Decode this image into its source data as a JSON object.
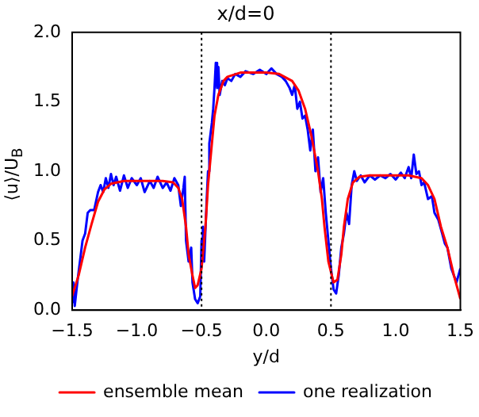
{
  "chart_data": {
    "type": "line",
    "title": "x/d=0",
    "xlabel": "y/d",
    "ylabel": "⟨u⟩/U$_{B}$",
    "xlim": [
      -1.5,
      1.5
    ],
    "xticks": [
      {
        "value": -1.5,
        "label": "−1.5"
      },
      {
        "value": -1,
        "label": "−1.0"
      },
      {
        "value": -0.5,
        "label": "−0.5"
      },
      {
        "value": 0,
        "label": "0.0"
      },
      {
        "value": 0.5,
        "label": "0.5"
      },
      {
        "value": 1,
        "label": "1.0"
      },
      {
        "value": 1.5,
        "label": "1.5"
      }
    ],
    "ylim": [
      0,
      2
    ],
    "yticks": [
      {
        "value": 0,
        "label": "0.0"
      },
      {
        "value": 0.5,
        "label": "0.5"
      },
      {
        "value": 1,
        "label": "1.0"
      },
      {
        "value": 1.5,
        "label": "1.5"
      },
      {
        "value": 2,
        "label": "2.0"
      }
    ],
    "grid": false,
    "legend": "bottom",
    "marker": "none",
    "line_style": "solid",
    "ref_lines": [
      {
        "axis": "x",
        "value": -0.5,
        "color": "#000000",
        "line_style": "dotted"
      },
      {
        "axis": "x",
        "value": 0.5,
        "color": "#000000",
        "line_style": "dotted"
      }
    ],
    "series": [
      {
        "name": "ensemble mean",
        "color": "#ff0000",
        "x": [
          -1.5,
          -1.45,
          -1.4,
          -1.35,
          -1.3,
          -1.25,
          -1.2,
          -1.1,
          -1,
          -0.9,
          -0.8,
          -0.72,
          -0.68,
          -0.65,
          -0.62,
          -0.6,
          -0.57,
          -0.55,
          -0.53,
          -0.5,
          -0.47,
          -0.45,
          -0.42,
          -0.4,
          -0.37,
          -0.33,
          -0.3,
          -0.2,
          0,
          0.1,
          0.2,
          0.25,
          0.3,
          0.35,
          0.4,
          0.43,
          0.45,
          0.48,
          0.52,
          0.55,
          0.58,
          0.6,
          0.63,
          0.67,
          0.72,
          0.8,
          1,
          1.1,
          1.2,
          1.25,
          1.3,
          1.35,
          1.4,
          1.45,
          1.5
        ],
        "values": [
          0.1,
          0.25,
          0.45,
          0.62,
          0.78,
          0.87,
          0.91,
          0.93,
          0.93,
          0.93,
          0.93,
          0.92,
          0.88,
          0.8,
          0.6,
          0.4,
          0.25,
          0.16,
          0.18,
          0.3,
          0.6,
          0.9,
          1.2,
          1.4,
          1.55,
          1.65,
          1.68,
          1.71,
          1.71,
          1.7,
          1.65,
          1.58,
          1.45,
          1.25,
          1,
          0.8,
          0.6,
          0.35,
          0.2,
          0.22,
          0.4,
          0.6,
          0.8,
          0.92,
          0.96,
          0.97,
          0.97,
          0.97,
          0.95,
          0.9,
          0.8,
          0.6,
          0.45,
          0.25,
          0.08
        ]
      },
      {
        "name": "one realization",
        "color": "#0000ff",
        "x": [
          -1.5,
          -1.49,
          -1.48,
          -1.46,
          -1.44,
          -1.42,
          -1.4,
          -1.38,
          -1.36,
          -1.33,
          -1.3,
          -1.28,
          -1.26,
          -1.24,
          -1.22,
          -1.2,
          -1.18,
          -1.16,
          -1.13,
          -1.1,
          -1.07,
          -1.04,
          -1,
          -0.97,
          -0.94,
          -0.9,
          -0.87,
          -0.84,
          -0.8,
          -0.77,
          -0.74,
          -0.71,
          -0.68,
          -0.66,
          -0.64,
          -0.63,
          -0.62,
          -0.6,
          -0.58,
          -0.57,
          -0.55,
          -0.53,
          -0.51,
          -0.5,
          -0.49,
          -0.48,
          -0.46,
          -0.45,
          -0.44,
          -0.42,
          -0.41,
          -0.4,
          -0.39,
          -0.38,
          -0.37,
          -0.36,
          -0.34,
          -0.32,
          -0.3,
          -0.27,
          -0.24,
          -0.2,
          -0.16,
          -0.1,
          -0.05,
          0,
          0.04,
          0.08,
          0.12,
          0.15,
          0.18,
          0.2,
          0.22,
          0.24,
          0.26,
          0.28,
          0.3,
          0.32,
          0.34,
          0.36,
          0.38,
          0.4,
          0.42,
          0.44,
          0.46,
          0.48,
          0.5,
          0.52,
          0.54,
          0.56,
          0.58,
          0.6,
          0.62,
          0.64,
          0.66,
          0.68,
          0.7,
          0.73,
          0.76,
          0.8,
          0.84,
          0.88,
          0.92,
          0.96,
          1,
          1.04,
          1.07,
          1.1,
          1.12,
          1.14,
          1.16,
          1.18,
          1.2,
          1.22,
          1.25,
          1.28,
          1.3,
          1.33,
          1.36,
          1.38,
          1.4,
          1.43,
          1.45,
          1.47,
          1.5
        ],
        "values": [
          0.05,
          0.2,
          0.03,
          0.2,
          0.35,
          0.5,
          0.55,
          0.7,
          0.72,
          0.72,
          0.85,
          0.9,
          0.85,
          0.95,
          0.88,
          0.98,
          0.9,
          0.96,
          0.86,
          0.97,
          0.88,
          0.95,
          0.9,
          0.95,
          0.85,
          0.93,
          0.88,
          0.96,
          0.88,
          0.92,
          0.86,
          0.95,
          0.9,
          0.75,
          0.88,
          0.96,
          0.5,
          0.35,
          0.45,
          0.2,
          0.08,
          0.05,
          0.1,
          0.5,
          0.6,
          0.35,
          0.8,
          1,
          1.2,
          1.35,
          1.45,
          1.6,
          1.78,
          1.6,
          1.75,
          1.55,
          1.65,
          1.62,
          1.67,
          1.65,
          1.7,
          1.68,
          1.72,
          1.7,
          1.73,
          1.7,
          1.74,
          1.7,
          1.68,
          1.65,
          1.6,
          1.55,
          1.62,
          1.45,
          1.5,
          1.38,
          1.4,
          1.3,
          1.15,
          1.3,
          1,
          1.1,
          0.85,
          0.95,
          0.7,
          0.5,
          0.3,
          0.15,
          0.12,
          0.25,
          0.45,
          0.55,
          0.7,
          0.62,
          0.9,
          1,
          0.93,
          0.97,
          0.92,
          0.97,
          0.94,
          0.97,
          0.95,
          0.98,
          0.94,
          0.99,
          0.95,
          1.03,
          0.95,
          1.12,
          0.98,
          1,
          0.9,
          0.92,
          0.8,
          0.82,
          0.7,
          0.65,
          0.55,
          0.48,
          0.45,
          0.3,
          0.25,
          0.2,
          0.3
        ]
      }
    ]
  }
}
